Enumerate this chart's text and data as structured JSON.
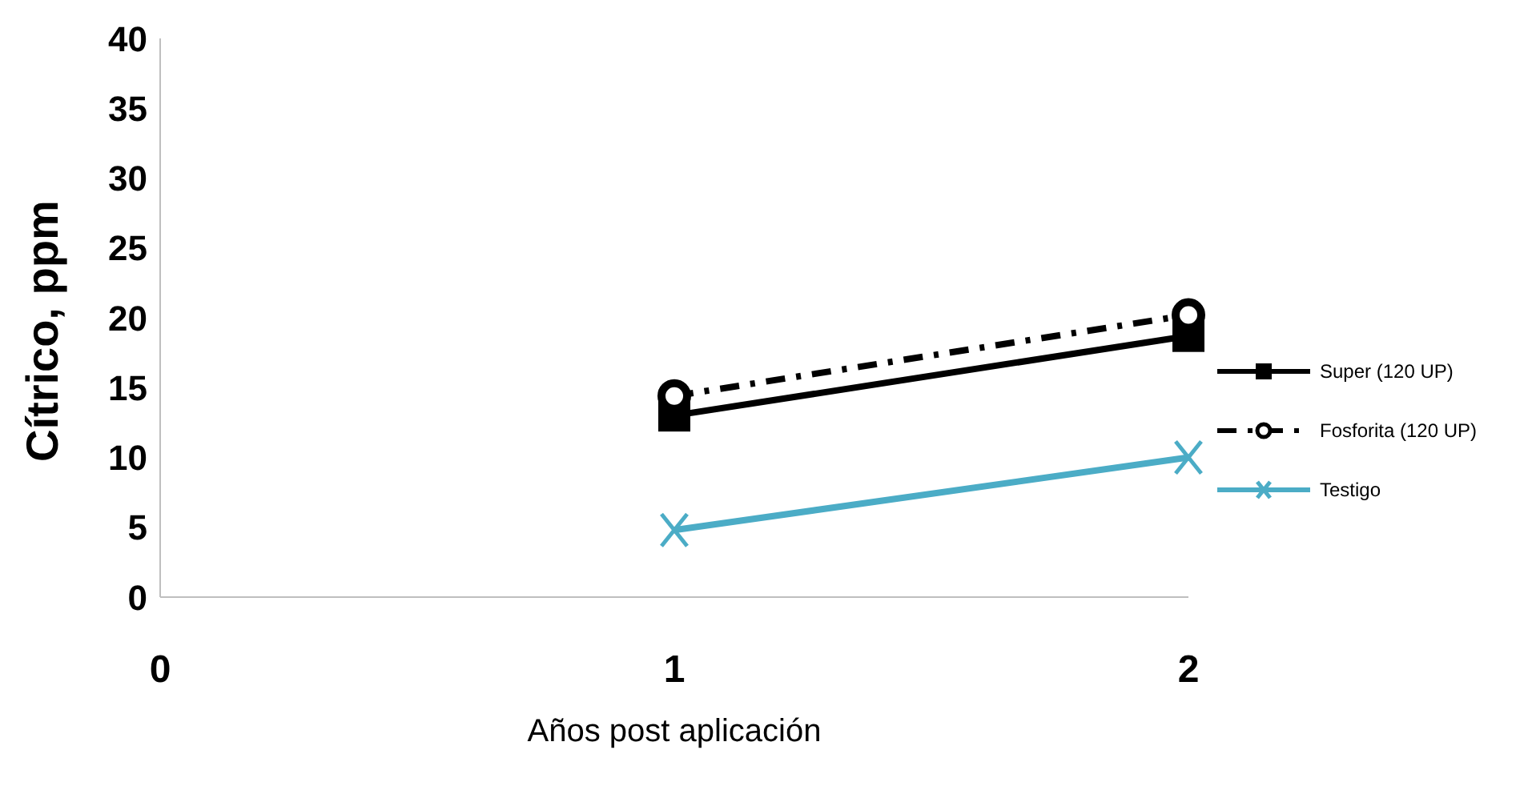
{
  "chart_data": {
    "type": "line",
    "xlabel": "Años post aplicación",
    "ylabel": "Cítrico, ppm",
    "x": [
      1,
      2
    ],
    "xlim": [
      0,
      2
    ],
    "xticks": [
      0,
      1,
      2
    ],
    "ylim": [
      0,
      40
    ],
    "yticks": [
      0,
      5,
      10,
      15,
      20,
      25,
      30,
      35,
      40
    ],
    "grid": false,
    "legend": "right",
    "series": [
      {
        "name": "Super (120 UP)",
        "color": "#000000",
        "values": [
          13,
          18.7
        ],
        "marker": "square",
        "line_style": "solid"
      },
      {
        "name": "Fosforita (120 UP)",
        "color": "#000000",
        "values": [
          14.4,
          20.2
        ],
        "marker": "circle",
        "line_style": "dashed"
      },
      {
        "name": "Testigo",
        "color": "#4bacc6",
        "values": [
          4.8,
          10
        ],
        "marker": "cross",
        "line_style": "solid"
      }
    ]
  }
}
